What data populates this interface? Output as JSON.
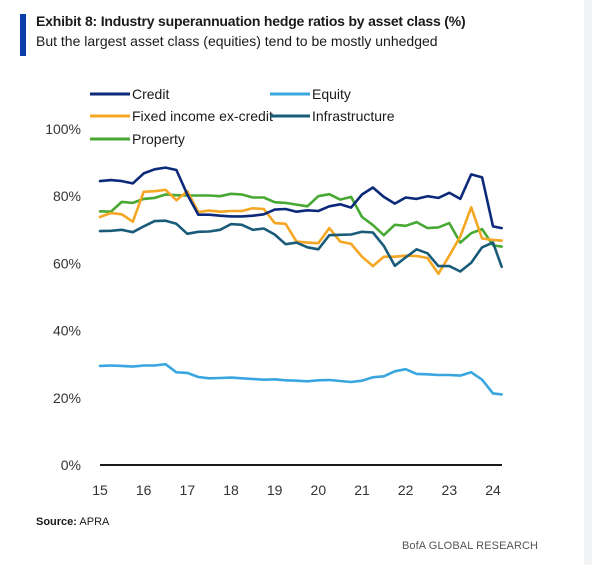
{
  "header": {
    "title": "Exhibit 8: Industry superannuation hedge ratios by asset class (%)",
    "subtitle": "But the largest asset class (equities) tend to be mostly unhedged"
  },
  "footer": {
    "source_label": "Source:",
    "source_value": "APRA",
    "brand": "BofA GLOBAL RESEARCH"
  },
  "chart_data": {
    "type": "line",
    "title": "Exhibit 8: Industry superannuation hedge ratios by asset class (%)",
    "xlabel": "",
    "ylabel": "",
    "xlim": [
      2015,
      2024.2
    ],
    "ylim": [
      0,
      100
    ],
    "x_ticks": [
      15,
      16,
      17,
      18,
      19,
      20,
      21,
      22,
      23,
      24
    ],
    "y_ticks": [
      0,
      20,
      40,
      60,
      80,
      100
    ],
    "y_tick_labels": [
      "0%",
      "20%",
      "40%",
      "60%",
      "80%",
      "100%"
    ],
    "grid": false,
    "legend": "top",
    "series": [
      {
        "name": "Credit",
        "color": "#0c2a7a",
        "x": [
          2015.0,
          2015.25,
          2015.5,
          2015.75,
          2016.0,
          2016.25,
          2016.5,
          2016.75,
          2017.0,
          2017.25,
          2017.5,
          2017.75,
          2018.0,
          2018.25,
          2018.5,
          2018.75,
          2019.0,
          2019.25,
          2019.5,
          2019.75,
          2020.0,
          2020.25,
          2020.5,
          2020.75,
          2021.0,
          2021.25,
          2021.5,
          2021.75,
          2022.0,
          2022.25,
          2022.5,
          2022.75,
          2023.0,
          2023.25,
          2023.5,
          2023.75,
          2024.0,
          2024.2
        ],
        "y": [
          84.5,
          84.8,
          84.5,
          83.8,
          86.8,
          88.0,
          88.5,
          87.8,
          80.5,
          74.5,
          74.5,
          74.2,
          74.0,
          74.0,
          74.2,
          74.6,
          76.0,
          76.2,
          75.4,
          75.8,
          75.6,
          77.0,
          77.6,
          76.6,
          80.5,
          82.6,
          79.8,
          77.8,
          79.6,
          79.2,
          80.0,
          79.5,
          81.0,
          79.2,
          86.5,
          85.6,
          71.0,
          70.5
        ]
      },
      {
        "name": "Equity",
        "color": "#3aa6df",
        "x": [
          2015.0,
          2015.25,
          2015.5,
          2015.75,
          2016.0,
          2016.25,
          2016.5,
          2016.75,
          2017.0,
          2017.25,
          2017.5,
          2017.75,
          2018.0,
          2018.25,
          2018.5,
          2018.75,
          2019.0,
          2019.25,
          2019.5,
          2019.75,
          2020.0,
          2020.25,
          2020.5,
          2020.75,
          2021.0,
          2021.25,
          2021.5,
          2021.75,
          2022.0,
          2022.25,
          2022.5,
          2022.75,
          2023.0,
          2023.25,
          2023.5,
          2023.75,
          2024.0,
          2024.2
        ],
        "y": [
          29.5,
          29.6,
          29.5,
          29.3,
          29.6,
          29.6,
          30.0,
          27.6,
          27.4,
          26.2,
          25.8,
          25.9,
          26.0,
          25.8,
          25.6,
          25.4,
          25.5,
          25.2,
          25.1,
          24.9,
          25.2,
          25.3,
          25.0,
          24.7,
          25.1,
          26.1,
          26.4,
          27.9,
          28.5,
          27.1,
          27.0,
          26.8,
          26.8,
          26.6,
          27.6,
          25.4,
          21.3,
          21.0
        ]
      },
      {
        "name": "Fixed income ex-credit",
        "color": "#f5a623",
        "x": [
          2015.0,
          2015.25,
          2015.5,
          2015.75,
          2016.0,
          2016.25,
          2016.5,
          2016.75,
          2017.0,
          2017.25,
          2017.5,
          2017.75,
          2018.0,
          2018.25,
          2018.5,
          2018.75,
          2019.0,
          2019.25,
          2019.5,
          2019.75,
          2020.0,
          2020.25,
          2020.5,
          2020.75,
          2021.0,
          2021.25,
          2021.5,
          2021.75,
          2022.0,
          2022.25,
          2022.5,
          2022.75,
          2023.0,
          2023.25,
          2023.5,
          2023.75,
          2024.0,
          2024.2
        ],
        "y": [
          73.8,
          75.0,
          74.6,
          72.4,
          81.3,
          81.5,
          81.9,
          78.8,
          81.5,
          75.3,
          75.7,
          75.4,
          75.6,
          75.6,
          76.4,
          76.2,
          72.0,
          71.8,
          66.5,
          66.2,
          66.0,
          70.5,
          66.5,
          65.8,
          62.0,
          59.2,
          62.0,
          62.0,
          62.3,
          62.2,
          61.6,
          56.9,
          62.3,
          68.0,
          76.7,
          67.4,
          67.0,
          66.8
        ]
      },
      {
        "name": "Infrastructure",
        "color": "#1a5b7a",
        "x": [
          2015.0,
          2015.25,
          2015.5,
          2015.75,
          2016.0,
          2016.25,
          2016.5,
          2016.75,
          2017.0,
          2017.25,
          2017.5,
          2017.75,
          2018.0,
          2018.25,
          2018.5,
          2018.75,
          2019.0,
          2019.25,
          2019.5,
          2019.75,
          2020.0,
          2020.25,
          2020.5,
          2020.75,
          2021.0,
          2021.25,
          2021.5,
          2021.75,
          2022.0,
          2022.25,
          2022.5,
          2022.75,
          2023.0,
          2023.25,
          2023.5,
          2023.75,
          2024.0,
          2024.2
        ],
        "y": [
          69.6,
          69.7,
          70.0,
          69.3,
          71.0,
          72.6,
          72.7,
          71.8,
          68.8,
          69.4,
          69.5,
          70.0,
          71.7,
          71.5,
          70.0,
          70.4,
          68.6,
          65.7,
          66.2,
          64.8,
          64.2,
          68.4,
          68.5,
          68.6,
          69.4,
          69.2,
          65.2,
          59.3,
          61.8,
          64.2,
          63.0,
          59.2,
          59.2,
          57.6,
          60.2,
          64.8,
          66.2,
          59.0
        ]
      },
      {
        "name": "Property",
        "color": "#47a832",
        "x": [
          2015.0,
          2015.25,
          2015.5,
          2015.75,
          2016.0,
          2016.25,
          2016.5,
          2016.75,
          2017.0,
          2017.25,
          2017.5,
          2017.75,
          2018.0,
          2018.25,
          2018.5,
          2018.75,
          2019.0,
          2019.25,
          2019.5,
          2019.75,
          2020.0,
          2020.25,
          2020.5,
          2020.75,
          2021.0,
          2021.25,
          2021.5,
          2021.75,
          2022.0,
          2022.25,
          2022.5,
          2022.75,
          2023.0,
          2023.25,
          2023.5,
          2023.75,
          2024.0,
          2024.2
        ],
        "y": [
          75.5,
          75.4,
          78.3,
          78.0,
          79.2,
          79.5,
          80.5,
          80.3,
          80.2,
          80.2,
          80.2,
          80.0,
          80.7,
          80.5,
          79.6,
          79.6,
          78.2,
          78.0,
          77.5,
          77.0,
          80.0,
          80.6,
          79.0,
          79.8,
          73.8,
          71.4,
          68.4,
          71.5,
          71.2,
          72.3,
          70.5,
          70.7,
          72.0,
          66.2,
          69.0,
          70.2,
          65.4,
          65.0
        ]
      }
    ]
  }
}
